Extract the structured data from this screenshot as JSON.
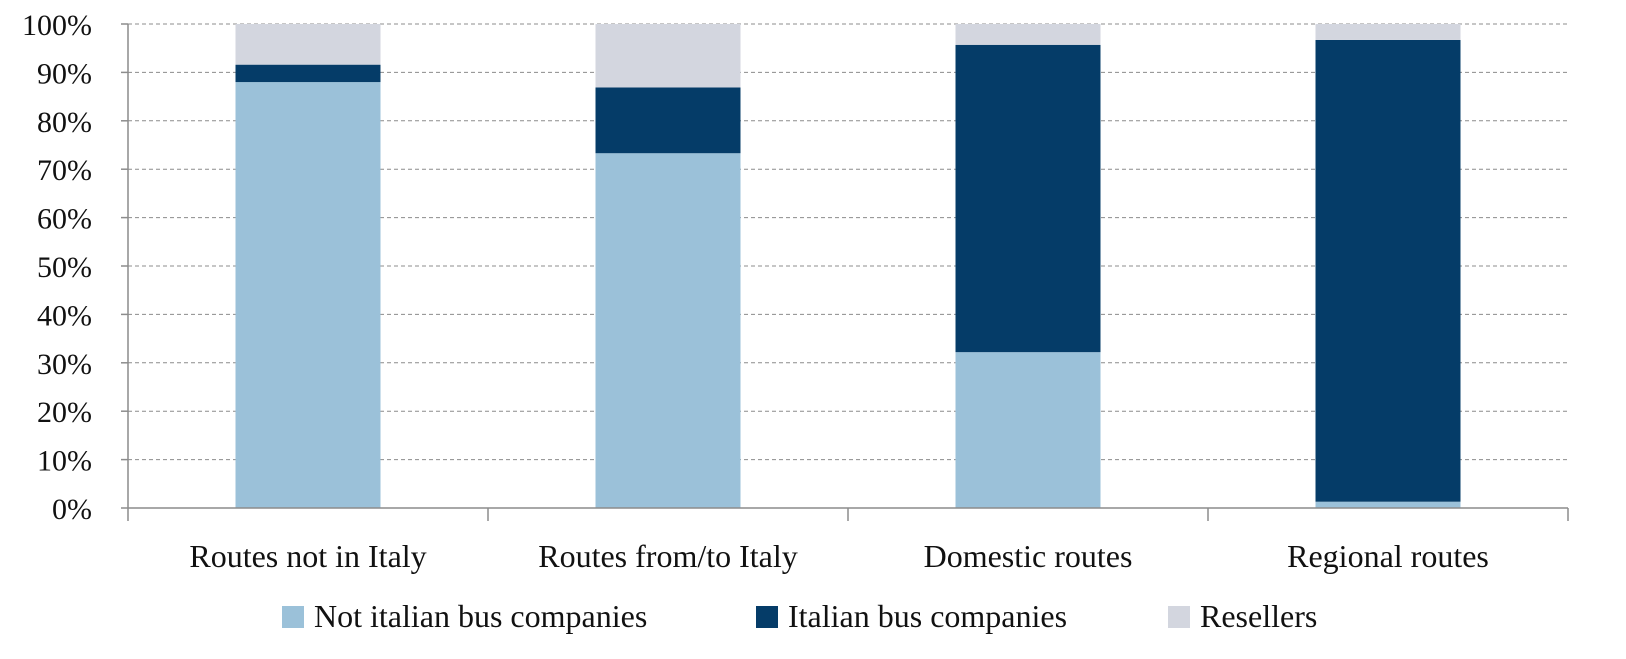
{
  "chart_data": {
    "type": "bar",
    "stacked": true,
    "percent_axis": true,
    "categories": [
      "Routes not in Italy",
      "Routes from/to Italy",
      "Domestic routes",
      "Regional routes"
    ],
    "series": [
      {
        "name": "Not italian bus companies",
        "color": "#9BC1D9",
        "values": [
          88.0,
          73.3,
          32.2,
          1.3
        ]
      },
      {
        "name": "Italian bus companies",
        "color": "#053C68",
        "values": [
          3.6,
          13.6,
          63.5,
          95.4
        ]
      },
      {
        "name": "Resellers",
        "color": "#D3D6DF",
        "values": [
          8.4,
          13.1,
          4.3,
          3.3
        ]
      }
    ],
    "yticks": [
      "0%",
      "10%",
      "20%",
      "30%",
      "40%",
      "50%",
      "60%",
      "70%",
      "80%",
      "90%",
      "100%"
    ],
    "ylim": [
      0,
      100
    ],
    "grid": true,
    "legend": "bottom"
  }
}
